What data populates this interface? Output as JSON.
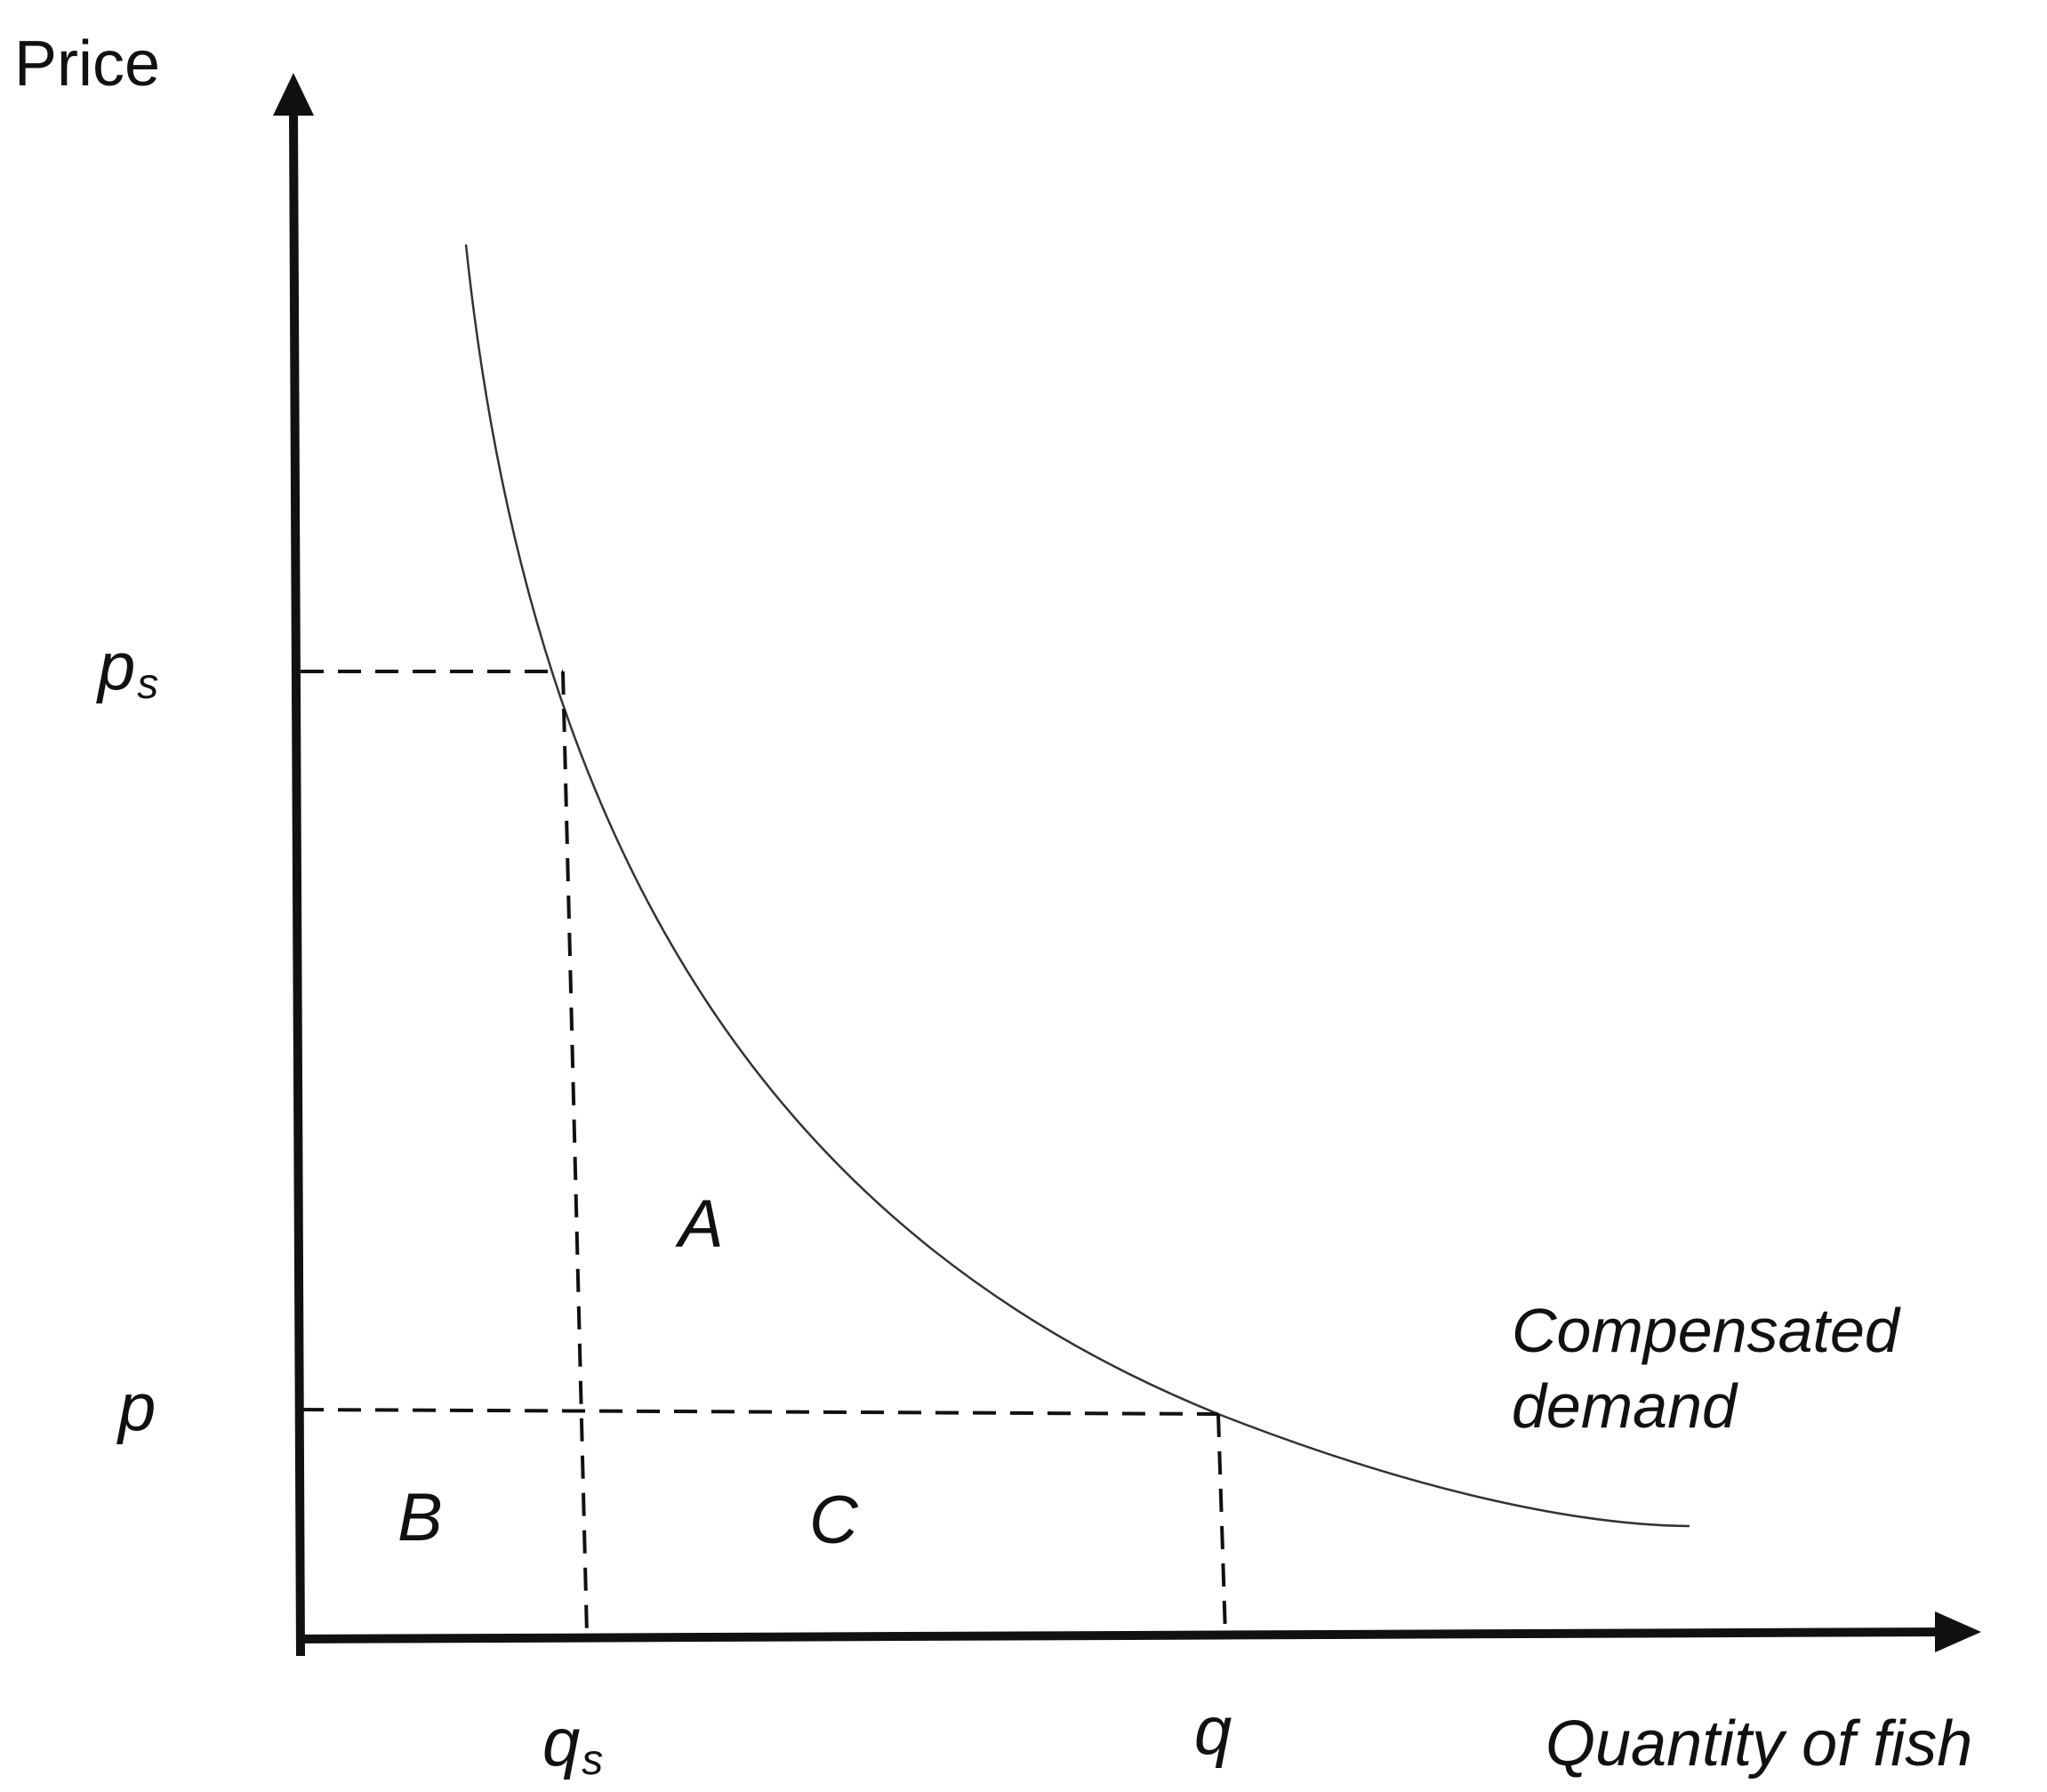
{
  "axes": {
    "y_label": "Price",
    "x_label": "Quantity of fish"
  },
  "ticks": {
    "ps_base": "p",
    "ps_sub": "s",
    "p": "p",
    "qs_base": "q",
    "qs_sub": "s",
    "q": "q"
  },
  "areas": {
    "a": "A",
    "b": "B",
    "c": "C"
  },
  "curve_label": {
    "line1": "Compensated",
    "line2": "demand"
  },
  "colors": {
    "ink": "#111111",
    "curve": "#333333",
    "background": "#ffffff"
  }
}
